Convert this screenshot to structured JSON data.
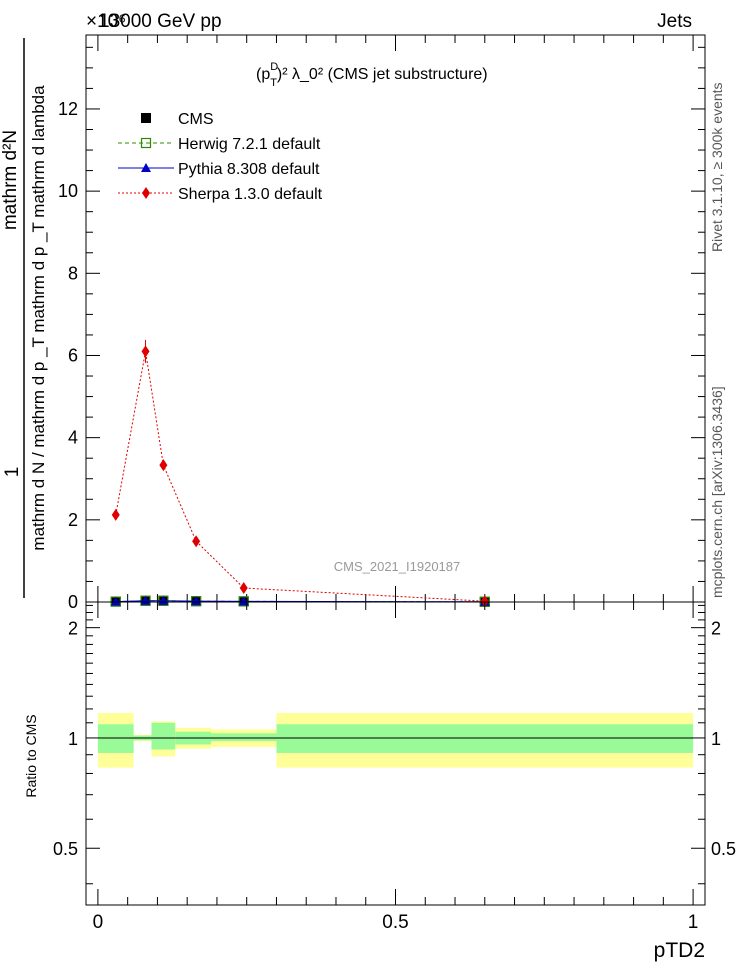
{
  "header": {
    "left": "13000 GeV pp",
    "right": "Jets",
    "exponent_label": "×10⁶"
  },
  "side_text": {
    "rivet": "Rivet 3.1.10, ≥ 300k events",
    "mcplots": "mcplots.cern.ch [arXiv:1306.3436]"
  },
  "analysis_id": "CMS_2021_I1920187",
  "chart_data": [
    {
      "type": "line",
      "panel": "main",
      "title": "(p_T^D)^2 λ_0^2 (CMS jet substructure)",
      "title_parts": {
        "base": "(p",
        "sup": "D",
        "sub": "T",
        "rest": ")² λ_0² (CMS jet substructure)"
      },
      "ylabel_numerator": "1",
      "ylabel_denominator": "mathrm d N / mathrm d p _T mathrm d p _T mathrm d lambda",
      "ylabel_top": "mathrm d²N",
      "xlim": [
        -0.02,
        1.02
      ],
      "ylim": [
        0,
        13.8
      ],
      "y_scale_note": "×10⁶",
      "y_ticks": [
        0,
        2,
        4,
        6,
        8,
        10,
        12
      ],
      "y_tick_labels": [
        "0",
        "2",
        "4",
        "6",
        "8",
        "10",
        "12"
      ],
      "legend_position": "top-left",
      "series": [
        {
          "name": "CMS",
          "color": "#000000",
          "marker": "square-filled",
          "x": [
            0.03,
            0.08,
            0.11,
            0.165,
            0.245,
            0.65
          ],
          "y": [
            0.01,
            0.03,
            0.03,
            0.02,
            0.015,
            0.005
          ]
        },
        {
          "name": "Herwig 7.2.1 default",
          "color": "#2e8b00",
          "marker": "square-open",
          "line": "dashed",
          "x": [
            0.03,
            0.08,
            0.11,
            0.165,
            0.245,
            0.65
          ],
          "y": [
            0.01,
            0.03,
            0.03,
            0.02,
            0.015,
            0.005
          ]
        },
        {
          "name": "Pythia 8.308 default",
          "color": "#0000c8",
          "marker": "triangle",
          "line": "solid",
          "x": [
            0.03,
            0.08,
            0.11,
            0.165,
            0.245,
            0.65
          ],
          "y": [
            0.01,
            0.03,
            0.03,
            0.02,
            0.015,
            0.005
          ]
        },
        {
          "name": "Sherpa 1.3.0 default",
          "color": "#e00000",
          "marker": "diamond",
          "line": "dotted",
          "x": [
            0.03,
            0.08,
            0.11,
            0.165,
            0.245,
            0.65
          ],
          "y": [
            2.12,
            6.1,
            3.33,
            1.48,
            0.34,
            0.02
          ],
          "err": [
            0.1,
            0.28,
            0.12,
            0.06,
            0.03,
            0.01
          ]
        }
      ]
    },
    {
      "type": "area",
      "panel": "ratio",
      "ylabel": "Ratio to CMS",
      "xlabel": "pTD2",
      "xlim": [
        -0.02,
        1.02
      ],
      "ylim": [
        0.35,
        2.35
      ],
      "y_scale": "log",
      "y_ticks": [
        0.5,
        1,
        2
      ],
      "y_tick_labels": [
        "0.5",
        "1",
        "2"
      ],
      "x_ticks": [
        0,
        0.5,
        1
      ],
      "x_tick_labels": [
        "0",
        "0.5",
        "1"
      ],
      "reference_line": 1,
      "bins": [
        {
          "lo": 0.0,
          "hi": 0.06,
          "inner": [
            0.91,
            1.09
          ],
          "outer": [
            0.83,
            1.17
          ]
        },
        {
          "lo": 0.06,
          "hi": 0.09,
          "inner": [
            0.985,
            1.015
          ],
          "outer": [
            0.98,
            1.02
          ]
        },
        {
          "lo": 0.09,
          "hi": 0.13,
          "inner": [
            0.93,
            1.1
          ],
          "outer": [
            0.89,
            1.11
          ]
        },
        {
          "lo": 0.13,
          "hi": 0.19,
          "inner": [
            0.96,
            1.04
          ],
          "outer": [
            0.935,
            1.065
          ]
        },
        {
          "lo": 0.19,
          "hi": 0.3,
          "inner": [
            0.98,
            1.03
          ],
          "outer": [
            0.945,
            1.055
          ]
        },
        {
          "lo": 0.3,
          "hi": 1.0,
          "inner": [
            0.91,
            1.09
          ],
          "outer": [
            0.83,
            1.17
          ]
        }
      ],
      "band_colors": {
        "inner": "#98fb98",
        "outer": "#ffff99"
      }
    }
  ]
}
